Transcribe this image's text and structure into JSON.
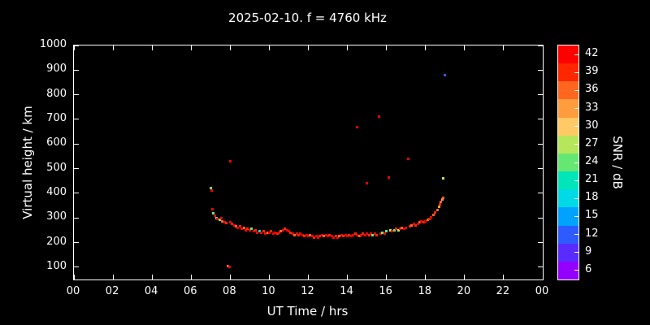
{
  "chart_data": {
    "type": "scatter",
    "title": "2025-02-10. f = 4760 kHz",
    "xlabel": "UT Time / hrs",
    "ylabel": "Virtual height / km",
    "xlim": [
      0,
      24
    ],
    "ylim": [
      50,
      1000
    ],
    "x_ticks": [
      {
        "value": 0,
        "label": "00"
      },
      {
        "value": 2,
        "label": "02"
      },
      {
        "value": 4,
        "label": "04"
      },
      {
        "value": 6,
        "label": "06"
      },
      {
        "value": 8,
        "label": "08"
      },
      {
        "value": 10,
        "label": "10"
      },
      {
        "value": 12,
        "label": "12"
      },
      {
        "value": 14,
        "label": "14"
      },
      {
        "value": 16,
        "label": "16"
      },
      {
        "value": 18,
        "label": "18"
      },
      {
        "value": 20,
        "label": "20"
      },
      {
        "value": 22,
        "label": "22"
      },
      {
        "value": 24,
        "label": "00"
      }
    ],
    "y_ticks": [
      100,
      200,
      300,
      400,
      500,
      600,
      700,
      800,
      900,
      1000
    ],
    "grid": false,
    "background": "#000000",
    "frame_color": "#ffffff",
    "colorbar": {
      "label": "SNR / dB",
      "min": 4.5,
      "max": 43.5,
      "ticks": [
        6,
        9,
        12,
        15,
        18,
        21,
        24,
        27,
        30,
        33,
        36,
        39,
        42
      ],
      "colors": [
        {
          "value": 6,
          "hex": "#9400ff"
        },
        {
          "value": 9,
          "hex": "#5a2bff"
        },
        {
          "value": 12,
          "hex": "#2e5bff"
        },
        {
          "value": 15,
          "hex": "#00a2ff"
        },
        {
          "value": 18,
          "hex": "#00d9e6"
        },
        {
          "value": 21,
          "hex": "#00e6b8"
        },
        {
          "value": 24,
          "hex": "#66e673"
        },
        {
          "value": 27,
          "hex": "#b5e65c"
        },
        {
          "value": 30,
          "hex": "#ffc966"
        },
        {
          "value": 33,
          "hex": "#ff9c3d"
        },
        {
          "value": 36,
          "hex": "#ff661f"
        },
        {
          "value": 39,
          "hex": "#ff2600"
        },
        {
          "value": 42,
          "hex": "#ff0000"
        }
      ]
    },
    "points_format": [
      "ut_hours",
      "virtual_height_km",
      "snr_db"
    ],
    "points": [
      [
        7.0,
        420,
        25
      ],
      [
        7.05,
        412,
        41
      ],
      [
        7.1,
        335,
        41
      ],
      [
        7.15,
        318,
        25
      ],
      [
        7.2,
        308,
        41
      ],
      [
        7.3,
        300,
        25
      ],
      [
        7.35,
        296,
        41
      ],
      [
        7.45,
        291,
        25
      ],
      [
        7.55,
        299,
        41
      ],
      [
        7.6,
        286,
        35
      ],
      [
        7.7,
        281,
        41
      ],
      [
        7.8,
        278,
        38
      ],
      [
        7.9,
        106,
        35
      ],
      [
        7.95,
        100,
        41
      ],
      [
        8.0,
        530,
        41
      ],
      [
        8.0,
        283,
        41
      ],
      [
        8.1,
        276,
        38
      ],
      [
        8.2,
        271,
        41
      ],
      [
        8.3,
        266,
        35
      ],
      [
        8.4,
        261,
        41
      ],
      [
        8.5,
        266,
        38
      ],
      [
        8.6,
        256,
        41
      ],
      [
        8.7,
        261,
        35
      ],
      [
        8.8,
        251,
        41
      ],
      [
        8.9,
        256,
        38
      ],
      [
        9.0,
        251,
        41
      ],
      [
        9.1,
        256,
        25
      ],
      [
        9.2,
        246,
        41
      ],
      [
        9.3,
        251,
        38
      ],
      [
        9.4,
        241,
        41
      ],
      [
        9.5,
        246,
        19
      ],
      [
        9.6,
        241,
        41
      ],
      [
        9.7,
        246,
        38
      ],
      [
        9.8,
        236,
        41
      ],
      [
        9.9,
        241,
        35
      ],
      [
        10.0,
        241,
        41
      ],
      [
        10.1,
        246,
        38
      ],
      [
        10.2,
        236,
        41
      ],
      [
        10.3,
        241,
        41
      ],
      [
        10.4,
        236,
        38
      ],
      [
        10.5,
        241,
        41
      ],
      [
        10.6,
        246,
        35
      ],
      [
        10.7,
        251,
        41
      ],
      [
        10.8,
        256,
        38
      ],
      [
        10.9,
        251,
        41
      ],
      [
        11.0,
        246,
        41
      ],
      [
        11.1,
        241,
        38
      ],
      [
        11.2,
        236,
        41
      ],
      [
        11.3,
        231,
        35
      ],
      [
        11.4,
        236,
        41
      ],
      [
        11.5,
        231,
        38
      ],
      [
        11.6,
        236,
        41
      ],
      [
        11.7,
        231,
        41
      ],
      [
        11.8,
        226,
        38
      ],
      [
        11.9,
        231,
        41
      ],
      [
        12.0,
        226,
        41
      ],
      [
        12.1,
        231,
        35
      ],
      [
        12.2,
        226,
        41
      ],
      [
        12.3,
        221,
        38
      ],
      [
        12.4,
        226,
        41
      ],
      [
        12.5,
        221,
        41
      ],
      [
        12.6,
        226,
        38
      ],
      [
        12.7,
        231,
        41
      ],
      [
        12.8,
        226,
        35
      ],
      [
        12.9,
        231,
        41
      ],
      [
        13.0,
        226,
        41
      ],
      [
        13.1,
        231,
        38
      ],
      [
        13.2,
        226,
        41
      ],
      [
        13.3,
        221,
        41
      ],
      [
        13.4,
        226,
        38
      ],
      [
        13.5,
        221,
        41
      ],
      [
        13.6,
        226,
        35
      ],
      [
        13.7,
        231,
        41
      ],
      [
        13.8,
        226,
        38
      ],
      [
        13.9,
        231,
        41
      ],
      [
        14.0,
        226,
        41
      ],
      [
        14.1,
        231,
        38
      ],
      [
        14.2,
        226,
        41
      ],
      [
        14.3,
        231,
        41
      ],
      [
        14.4,
        236,
        38
      ],
      [
        14.5,
        231,
        41
      ],
      [
        14.5,
        670,
        41
      ],
      [
        14.6,
        226,
        35
      ],
      [
        14.7,
        231,
        41
      ],
      [
        14.8,
        236,
        38
      ],
      [
        14.9,
        231,
        41
      ],
      [
        15.0,
        236,
        41
      ],
      [
        15.0,
        440,
        41
      ],
      [
        15.1,
        231,
        38
      ],
      [
        15.2,
        236,
        41
      ],
      [
        15.3,
        231,
        25
      ],
      [
        15.4,
        236,
        41
      ],
      [
        15.5,
        231,
        38
      ],
      [
        15.6,
        710,
        41
      ],
      [
        15.7,
        236,
        41
      ],
      [
        15.8,
        241,
        25
      ],
      [
        15.9,
        236,
        41
      ],
      [
        16.0,
        246,
        25
      ],
      [
        16.1,
        465,
        41
      ],
      [
        16.2,
        251,
        27
      ],
      [
        16.3,
        246,
        41
      ],
      [
        16.4,
        251,
        25
      ],
      [
        16.5,
        256,
        38
      ],
      [
        16.6,
        251,
        27
      ],
      [
        16.7,
        256,
        41
      ],
      [
        16.8,
        261,
        35
      ],
      [
        16.9,
        256,
        41
      ],
      [
        17.0,
        261,
        41
      ],
      [
        17.1,
        540,
        41
      ],
      [
        17.2,
        266,
        38
      ],
      [
        17.3,
        271,
        35
      ],
      [
        17.4,
        276,
        41
      ],
      [
        17.5,
        271,
        38
      ],
      [
        17.6,
        276,
        41
      ],
      [
        17.7,
        281,
        35
      ],
      [
        17.8,
        286,
        41
      ],
      [
        17.9,
        281,
        38
      ],
      [
        18.0,
        286,
        41
      ],
      [
        18.1,
        291,
        35
      ],
      [
        18.2,
        296,
        38
      ],
      [
        18.3,
        301,
        41
      ],
      [
        18.4,
        311,
        35
      ],
      [
        18.5,
        321,
        38
      ],
      [
        18.6,
        331,
        35
      ],
      [
        18.7,
        346,
        32
      ],
      [
        18.75,
        356,
        38
      ],
      [
        18.8,
        366,
        35
      ],
      [
        18.85,
        376,
        32
      ],
      [
        18.9,
        381,
        35
      ],
      [
        18.9,
        460,
        27
      ],
      [
        19.0,
        880,
        11
      ]
    ]
  }
}
